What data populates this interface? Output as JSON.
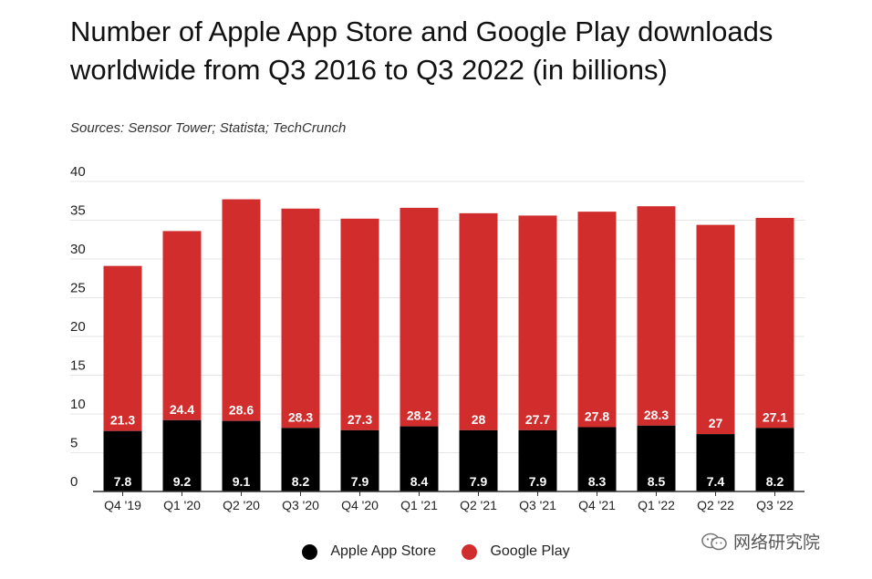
{
  "title": "Number of Apple App Store and Google Play downloads worldwide from Q3 2016 to Q3 2022 (in billions)",
  "source": "Sources: Sensor Tower; Statista; TechCrunch",
  "watermark": "网络研究院",
  "colors": {
    "apple": "#000000",
    "google": "#d12d2d",
    "grid": "#e6e6e6",
    "axis": "#333333"
  },
  "chart_data": {
    "type": "bar",
    "stacked": true,
    "categories": [
      "Q4 '19",
      "Q1 '20",
      "Q2 '20",
      "Q3 '20",
      "Q4 '20",
      "Q1 '21",
      "Q2 '21",
      "Q3 '21",
      "Q4 '21",
      "Q1 '22",
      "Q2 '22",
      "Q3 '22"
    ],
    "series": [
      {
        "name": "Apple App Store",
        "values": [
          7.8,
          9.2,
          9.1,
          8.2,
          7.9,
          8.4,
          7.9,
          7.9,
          8.3,
          8.5,
          7.4,
          8.2
        ]
      },
      {
        "name": "Google Play",
        "values": [
          21.3,
          24.4,
          28.6,
          28.3,
          27.3,
          28.2,
          28,
          27.7,
          27.8,
          28.3,
          27,
          27.1
        ]
      }
    ],
    "ylim": [
      0,
      40
    ],
    "yticks": [
      0,
      5,
      10,
      15,
      20,
      25,
      30,
      35,
      40
    ],
    "grid": true,
    "legend": "bottom-center"
  }
}
